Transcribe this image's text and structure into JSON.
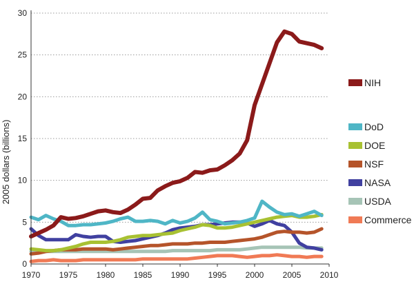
{
  "chart_data": {
    "type": "line",
    "title": "",
    "xlabel": "",
    "ylabel": "2005 dollars (billions)",
    "xlim": [
      1970,
      2010
    ],
    "ylim": [
      0,
      30
    ],
    "grid": true,
    "x_ticks": [
      "1970",
      "1975",
      "1980",
      "1985",
      "1990",
      "1995",
      "2000",
      "2005",
      "2010"
    ],
    "y_ticks": [
      "0",
      "5",
      "10",
      "15",
      "20",
      "25",
      "30"
    ],
    "x": [
      1970,
      1971,
      1972,
      1973,
      1974,
      1975,
      1976,
      1977,
      1978,
      1979,
      1980,
      1981,
      1982,
      1983,
      1984,
      1985,
      1986,
      1987,
      1988,
      1989,
      1990,
      1991,
      1992,
      1993,
      1994,
      1995,
      1996,
      1997,
      1998,
      1999,
      2000,
      2001,
      2002,
      2003,
      2004,
      2005,
      2006,
      2007,
      2008,
      2009
    ],
    "series": [
      {
        "name": "NIH",
        "color": "#8b1a1a",
        "values": [
          3.3,
          3.7,
          4.1,
          4.6,
          5.6,
          5.4,
          5.5,
          5.7,
          6.0,
          6.3,
          6.4,
          6.2,
          6.1,
          6.5,
          7.1,
          7.8,
          7.9,
          8.8,
          9.3,
          9.7,
          9.9,
          10.3,
          11.0,
          10.9,
          11.2,
          11.3,
          11.8,
          12.4,
          13.2,
          14.8,
          19.0,
          21.5,
          24.0,
          26.5,
          27.8,
          27.5,
          26.6,
          26.4,
          26.2,
          25.8
        ]
      },
      {
        "name": "DoD",
        "color": "#4fb6c6",
        "values": [
          5.6,
          5.3,
          5.8,
          5.4,
          5.1,
          4.6,
          4.6,
          4.7,
          4.7,
          4.8,
          4.9,
          5.1,
          5.4,
          5.6,
          5.1,
          5.1,
          5.2,
          5.1,
          4.8,
          5.2,
          4.9,
          5.1,
          5.5,
          6.2,
          5.3,
          5.1,
          4.8,
          4.9,
          5.0,
          5.2,
          5.5,
          7.5,
          6.8,
          6.2,
          5.9,
          6.0,
          5.7,
          6.0,
          6.3,
          5.8
        ]
      },
      {
        "name": "DOE",
        "color": "#a8c132",
        "values": [
          1.8,
          1.7,
          1.6,
          1.6,
          1.7,
          1.9,
          2.1,
          2.4,
          2.6,
          2.6,
          2.6,
          2.7,
          2.9,
          3.2,
          3.3,
          3.4,
          3.4,
          3.5,
          3.6,
          3.7,
          4.0,
          4.2,
          4.4,
          4.7,
          4.6,
          4.3,
          4.3,
          4.4,
          4.6,
          4.8,
          5.0,
          5.2,
          5.4,
          5.6,
          5.7,
          5.8,
          5.6,
          5.6,
          5.7,
          5.9
        ]
      },
      {
        "name": "NSF",
        "color": "#b5542a",
        "values": [
          1.2,
          1.3,
          1.5,
          1.6,
          1.7,
          1.7,
          1.7,
          1.8,
          1.8,
          1.8,
          1.8,
          1.7,
          1.8,
          1.9,
          2.0,
          2.1,
          2.2,
          2.2,
          2.3,
          2.4,
          2.4,
          2.4,
          2.5,
          2.5,
          2.6,
          2.6,
          2.6,
          2.7,
          2.8,
          2.9,
          3.0,
          3.2,
          3.5,
          3.8,
          3.9,
          3.8,
          3.8,
          3.7,
          3.8,
          4.2
        ]
      },
      {
        "name": "NASA",
        "color": "#4040a0",
        "values": [
          4.2,
          3.4,
          2.9,
          2.9,
          2.9,
          2.9,
          3.5,
          3.3,
          3.2,
          3.3,
          3.3,
          2.7,
          2.6,
          2.7,
          2.8,
          3.0,
          3.2,
          3.4,
          3.7,
          4.1,
          4.3,
          4.4,
          4.5,
          4.7,
          4.7,
          4.8,
          4.9,
          5.0,
          5.0,
          4.9,
          4.5,
          4.8,
          5.2,
          4.8,
          4.6,
          3.8,
          2.5,
          2.0,
          1.9,
          1.7
        ]
      },
      {
        "name": "USDA",
        "color": "#a6c4b6",
        "values": [
          1.5,
          1.5,
          1.5,
          1.5,
          1.5,
          1.5,
          1.5,
          1.5,
          1.5,
          1.5,
          1.5,
          1.5,
          1.5,
          1.5,
          1.5,
          1.5,
          1.5,
          1.5,
          1.5,
          1.6,
          1.6,
          1.6,
          1.6,
          1.6,
          1.6,
          1.7,
          1.7,
          1.7,
          1.7,
          1.8,
          1.9,
          2.0,
          2.0,
          2.0,
          2.0,
          2.0,
          2.0,
          1.9,
          1.9,
          1.9
        ]
      },
      {
        "name": "Commerce",
        "color": "#f07a55",
        "values": [
          0.3,
          0.4,
          0.4,
          0.5,
          0.4,
          0.4,
          0.4,
          0.5,
          0.5,
          0.5,
          0.5,
          0.5,
          0.5,
          0.5,
          0.5,
          0.6,
          0.6,
          0.6,
          0.6,
          0.6,
          0.6,
          0.6,
          0.7,
          0.8,
          0.9,
          1.0,
          1.0,
          1.0,
          0.9,
          0.8,
          0.9,
          1.0,
          1.0,
          1.1,
          1.0,
          0.9,
          0.9,
          0.8,
          0.9,
          0.9
        ]
      }
    ],
    "legend": [
      "NIH",
      "DoD",
      "DOE",
      "NSF",
      "NASA",
      "USDA",
      "Commerce"
    ],
    "legend_placement": "right"
  }
}
